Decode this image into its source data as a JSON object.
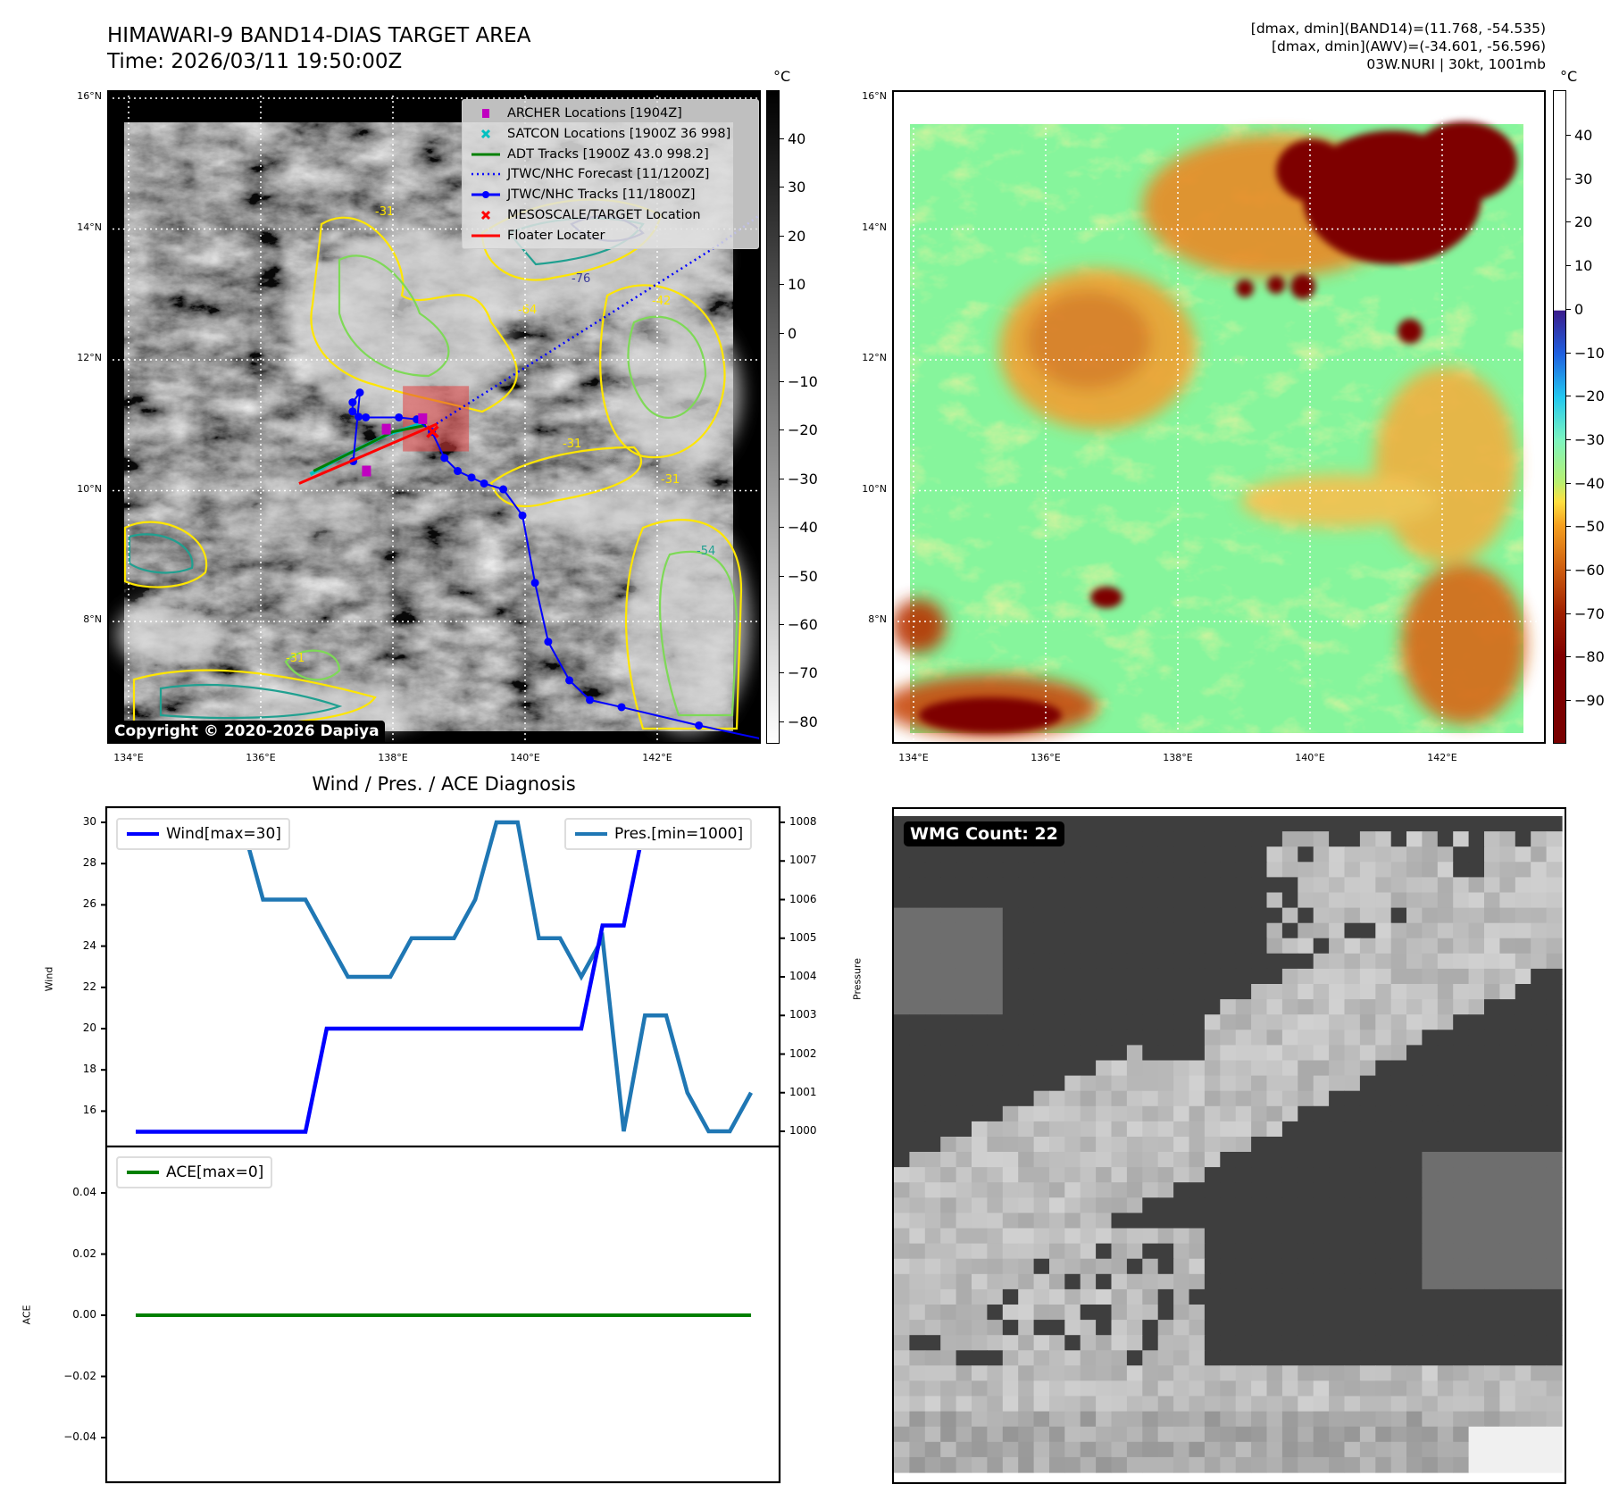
{
  "header": {
    "title_line1": "HIMAWARI-9 BAND14-DIAS TARGET AREA",
    "title_line2": "Time: 2026/03/11 19:50:00Z",
    "stats_line1": "[dmax, dmin](BAND14)=(11.768, -54.535)",
    "stats_line2": "[dmax, dmin](AWV)=(-34.601, -56.596)",
    "stats_line3": "03W.NURI | 30kt, 1001mb"
  },
  "maps": {
    "lat_labels": [
      "16°N",
      "14°N",
      "12°N",
      "10°N",
      "8°N"
    ],
    "lat_values": [
      16,
      14,
      12,
      10,
      8
    ],
    "lon_labels": [
      "134°E",
      "136°E",
      "138°E",
      "140°E",
      "142°E"
    ],
    "lon_values": [
      134,
      136,
      138,
      140,
      142
    ],
    "unit": "°C",
    "left_colorbar_ticks": [
      "40",
      "30",
      "20",
      "10",
      "0",
      "−10",
      "−20",
      "−30",
      "−40",
      "−50",
      "−60",
      "−70",
      "−80"
    ],
    "right_colorbar_ticks": [
      "40",
      "30",
      "20",
      "10",
      "0",
      "−10",
      "−20",
      "−30",
      "−40",
      "−50",
      "−60",
      "−70",
      "−80",
      "−90"
    ],
    "copyright": "Copyright © 2020-2026 Dapiya",
    "contour_labels": [
      "-31",
      "-64",
      "-76",
      "-42",
      "-31",
      "-31",
      "-54",
      "-31"
    ],
    "legend": [
      {
        "label": "ARCHER Locations [1904Z]",
        "color": "#c000c0",
        "symbol": "square"
      },
      {
        "label": "SATCON Locations [1900Z 36 998]",
        "color": "#00c0c0",
        "symbol": "x"
      },
      {
        "label": "ADT Tracks [1900Z 43.0 998.2]",
        "color": "#008000",
        "symbol": "line"
      },
      {
        "label": "JTWC/NHC Forecast [11/1200Z]",
        "color": "#0000ff",
        "symbol": "dotted"
      },
      {
        "label": "JTWC/NHC Tracks [11/1800Z]",
        "color": "#0000ff",
        "symbol": "line-dot"
      },
      {
        "label": "MESOSCALE/TARGET Location",
        "color": "#ff0000",
        "symbol": "x"
      },
      {
        "label": "Floater Locater",
        "color": "#ff0000",
        "symbol": "line"
      }
    ],
    "jtwc_track": [
      [
        137.4,
        10.45
      ],
      [
        137.5,
        11.5
      ],
      [
        137.39,
        11.35
      ],
      [
        137.39,
        11.21
      ],
      [
        137.48,
        11.13
      ],
      [
        137.59,
        11.12
      ],
      [
        138.09,
        11.12
      ],
      [
        138.36,
        11.09
      ],
      [
        138.59,
        10.9
      ],
      [
        138.78,
        10.5
      ],
      [
        138.98,
        10.3
      ],
      [
        139.19,
        10.2
      ],
      [
        139.38,
        10.11
      ],
      [
        139.67,
        10.02
      ],
      [
        139.96,
        9.62
      ],
      [
        140.15,
        8.59
      ],
      [
        140.35,
        7.69
      ],
      [
        140.67,
        7.1
      ],
      [
        140.98,
        6.8
      ],
      [
        141.46,
        6.69
      ],
      [
        142.63,
        6.41
      ],
      [
        143.6,
        6.2
      ]
    ],
    "jtwc_forecast": [
      [
        138.59,
        10.98
      ],
      [
        142.92,
        13.75
      ],
      [
        143.6,
        14.25
      ]
    ],
    "floater_line": [
      [
        136.58,
        10.11
      ],
      [
        138.67,
        11.02
      ]
    ],
    "adt_track": [
      [
        136.8,
        10.3
      ],
      [
        137.3,
        10.55
      ],
      [
        138.0,
        10.9
      ],
      [
        138.5,
        11.0
      ]
    ],
    "satcon_track": [
      [
        136.75,
        10.25
      ],
      [
        137.2,
        10.5
      ],
      [
        137.9,
        10.85
      ],
      [
        138.5,
        11.05
      ]
    ],
    "archer_points": [
      [
        137.9,
        10.94
      ],
      [
        137.6,
        10.3
      ],
      [
        138.45,
        11.1
      ]
    ],
    "target_location": [
      138.6,
      10.9
    ],
    "target_box": {
      "lon": [
        138.15,
        139.15
      ],
      "lat": [
        10.6,
        11.6
      ]
    }
  },
  "diagnosis": {
    "title": "Wind / Pres. / ACE Diagnosis",
    "wind_legend": "Wind[max=30]",
    "pres_legend": "Pres.[min=1000]",
    "ace_legend": "ACE[max=0]",
    "wind_ylabel": "Wind",
    "pres_ylabel": "Pressure",
    "ace_ylabel": "ACE",
    "wind_ticks": [
      "30",
      "28",
      "26",
      "24",
      "22",
      "20",
      "18",
      "16"
    ],
    "pres_ticks": [
      "1008",
      "1007",
      "1006",
      "1005",
      "1004",
      "1003",
      "1002",
      "1001",
      "1000"
    ],
    "ace_ticks": [
      "0.04",
      "0.02",
      "0.00",
      "−0.02",
      "−0.04"
    ]
  },
  "chart_data": [
    {
      "type": "line",
      "title": "Wind / Pres. / ACE Diagnosis",
      "ylabel": "Wind",
      "ylim": [
        14.3,
        30.8
      ],
      "y2label": "Pressure",
      "y2lim": [
        999.6,
        1008.4
      ],
      "series": [
        {
          "name": "Wind[max=30]",
          "axis": "left",
          "color": "#0000ff",
          "values": [
            15,
            15,
            15,
            15,
            15,
            15,
            15,
            15,
            15,
            20,
            20,
            20,
            20,
            20,
            20,
            20,
            20,
            20,
            20,
            20,
            20,
            20,
            25,
            25,
            30,
            30,
            30,
            30,
            30,
            30
          ]
        },
        {
          "name": "Pres.[min=1000]",
          "axis": "right",
          "color": "#1f77b4",
          "values": [
            1008,
            1008,
            1008,
            1008,
            1008,
            1008,
            1006,
            1006,
            1006,
            1005,
            1004,
            1004,
            1004,
            1005,
            1005,
            1005,
            1006,
            1008,
            1008,
            1005,
            1005,
            1004,
            1005,
            1000,
            1003,
            1003,
            1001,
            1000,
            1000,
            1001
          ]
        }
      ]
    },
    {
      "type": "line",
      "ylabel": "ACE",
      "ylim": [
        -0.055,
        0.055
      ],
      "series": [
        {
          "name": "ACE[max=0]",
          "color": "#008000",
          "values": [
            0,
            0,
            0,
            0,
            0,
            0,
            0,
            0,
            0,
            0,
            0,
            0,
            0,
            0,
            0,
            0,
            0,
            0,
            0,
            0,
            0,
            0,
            0,
            0,
            0,
            0,
            0,
            0,
            0,
            0
          ]
        }
      ]
    }
  ],
  "wmg": {
    "label": "WMG Count: 22"
  }
}
